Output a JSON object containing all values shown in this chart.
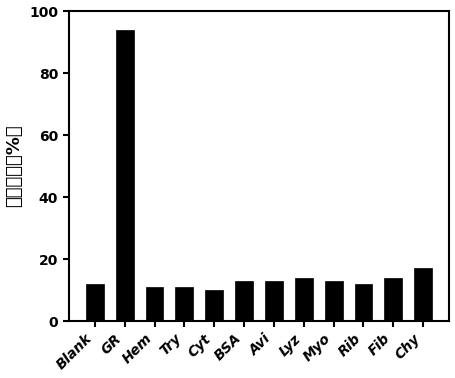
{
  "categories": [
    "Blank",
    "GR",
    "Hem",
    "Try",
    "Cyt",
    "BSA",
    "Avi",
    "Lyz",
    "Myo",
    "Rib",
    "Fib",
    "Chy"
  ],
  "values": [
    12,
    94,
    11,
    11,
    10,
    13,
    13,
    14,
    13,
    12,
    14,
    17
  ],
  "bar_color": "#000000",
  "ylabel": "荧光强度（%）",
  "ylim": [
    0,
    100
  ],
  "yticks": [
    0,
    20,
    40,
    60,
    80,
    100
  ],
  "bar_width": 0.6,
  "background_color": "#ffffff",
  "ylabel_fontsize": 13,
  "tick_fontsize": 10,
  "edge_color": "#000000"
}
